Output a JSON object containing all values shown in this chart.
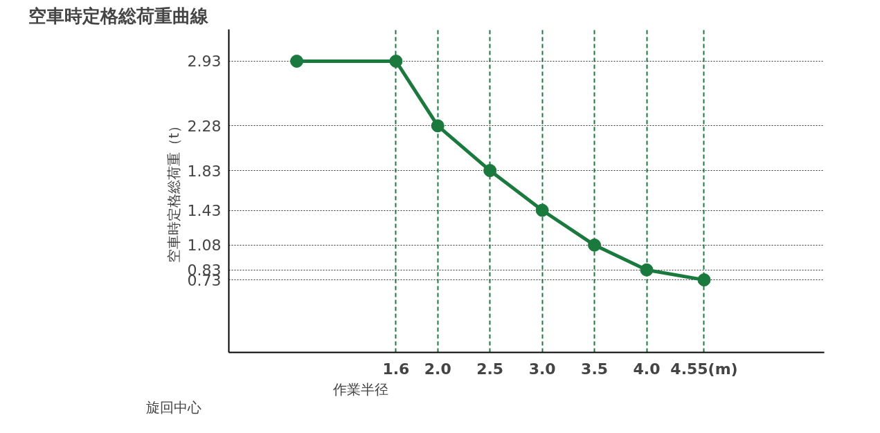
{
  "chart_data": {
    "type": "line",
    "title": "空車時定格総荷重曲線",
    "xlabel": "作業半径",
    "ylabel": "空車時定格総荷重（t）",
    "x": [
      0.65,
      1.6,
      2.0,
      2.5,
      3.0,
      3.5,
      4.0,
      4.55
    ],
    "series": [
      {
        "color": "#1a7a3e",
        "values": [
          2.93,
          2.93,
          2.28,
          1.83,
          1.43,
          1.08,
          0.83,
          0.73
        ]
      }
    ],
    "xlim": [
      0,
      5.7
    ],
    "ylim": [
      0,
      3.25
    ],
    "xticks": [
      1.6,
      {
        "value": 2,
        "label": "2.0"
      },
      2.5,
      {
        "value": 3,
        "label": "3.0"
      },
      3.5,
      {
        "value": 4,
        "label": "4.0"
      },
      {
        "value": 4.55,
        "label": "4.55(m)"
      }
    ],
    "yticks": [
      0.73,
      0.83,
      1.08,
      1.43,
      1.83,
      2.28,
      2.93
    ],
    "annotations": [
      "旋回中心"
    ],
    "grid": true,
    "marker": "circle",
    "line_style": "solid"
  }
}
